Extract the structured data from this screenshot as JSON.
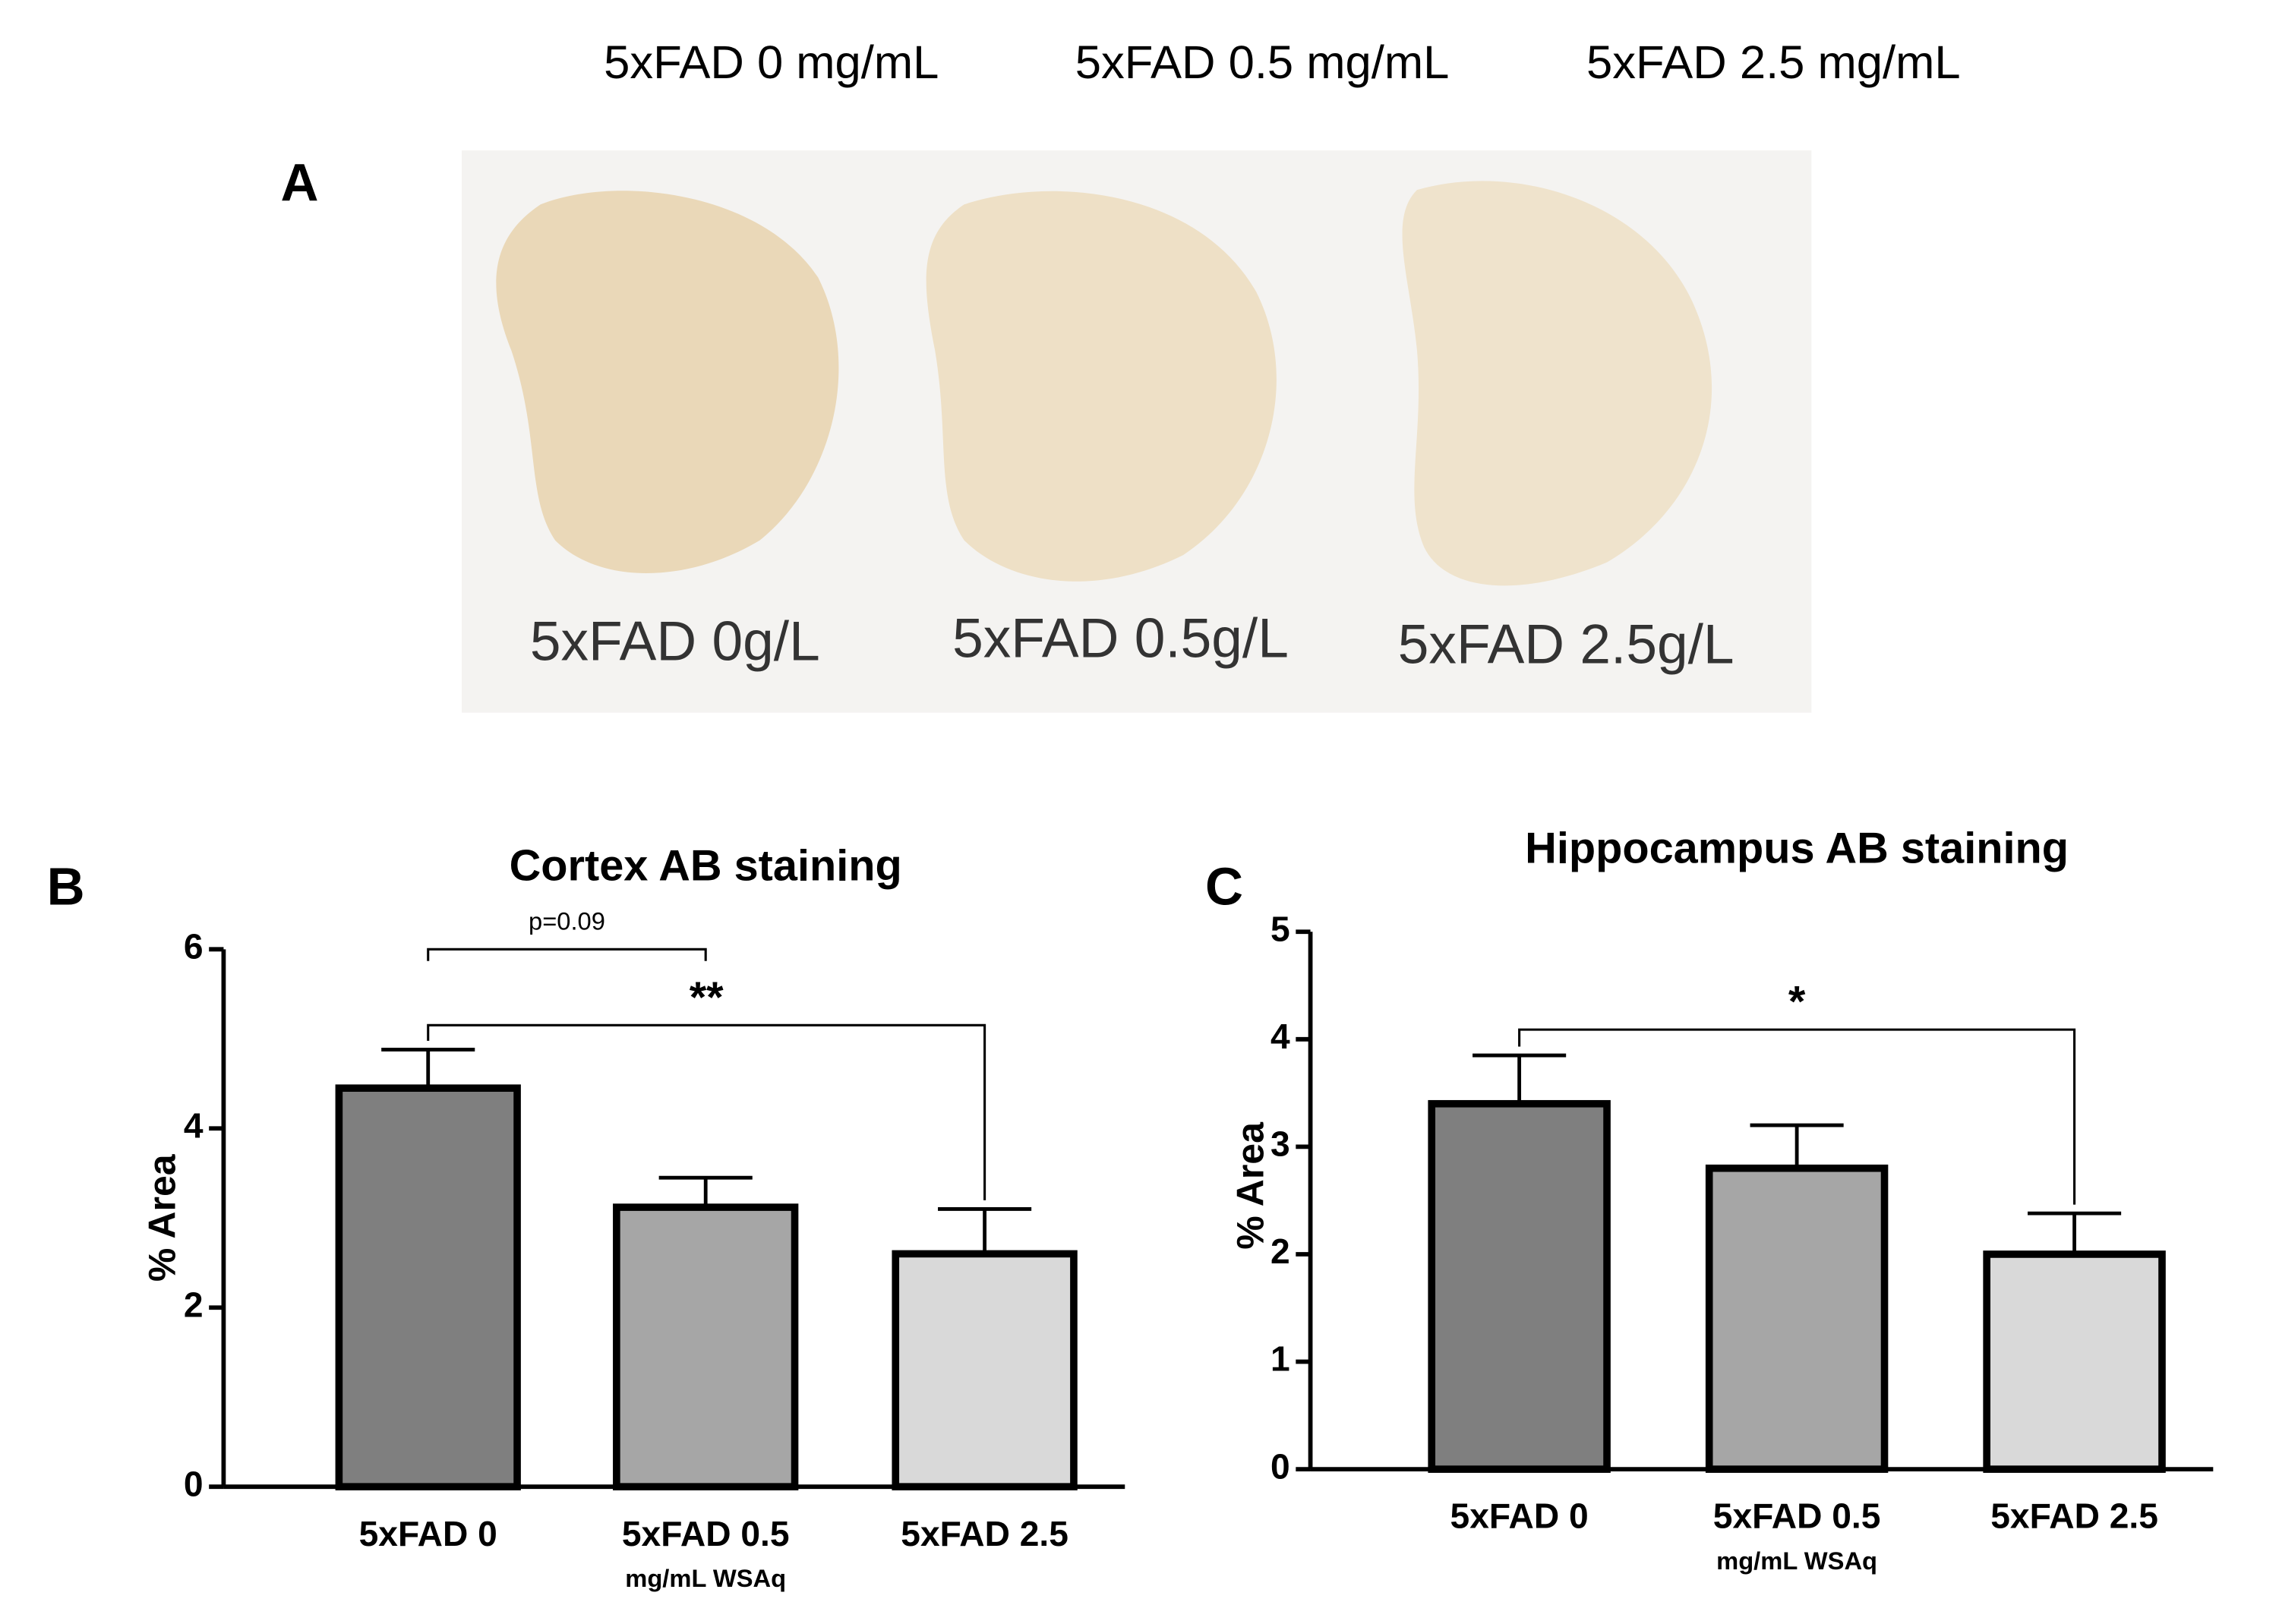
{
  "panel_a": {
    "label": "A",
    "headers": [
      "5xFAD 0 mg/mL",
      "5xFAD 0.5 mg/mL",
      "5xFAD 2.5 mg/mL"
    ],
    "image_labels": [
      "5xFAD 0g/L",
      "5xFAD 0.5g/L",
      "5xFAD 2.5g/L"
    ]
  },
  "chart_data": [
    {
      "type": "bar",
      "panel_label": "B",
      "title": "Cortex AB staining",
      "ylabel": "% Area",
      "xlabel": "mg/mL WSAq",
      "categories": [
        "5xFAD 0",
        "5xFAD 0.5",
        "5xFAD 2.5"
      ],
      "values": [
        4.45,
        3.12,
        2.6
      ],
      "errors": [
        0.43,
        0.33,
        0.5
      ],
      "colors": [
        "#7f7f7f",
        "#a6a6a6",
        "#d9d9d9"
      ],
      "ylim": [
        0,
        6
      ],
      "yticks": [
        0,
        2,
        4,
        6
      ],
      "annotations": [
        "p=0.09",
        "**"
      ]
    },
    {
      "type": "bar",
      "panel_label": "C",
      "title": "Hippocampus AB staining",
      "ylabel": "% Area",
      "xlabel": "mg/mL WSAq",
      "categories": [
        "5xFAD 0",
        "5xFAD 0.5",
        "5xFAD 2.5"
      ],
      "values": [
        3.4,
        2.8,
        2.0
      ],
      "errors": [
        0.45,
        0.4,
        0.38
      ],
      "colors": [
        "#7f7f7f",
        "#a6a6a6",
        "#d9d9d9"
      ],
      "ylim": [
        0,
        5
      ],
      "yticks": [
        0,
        1,
        2,
        3,
        4,
        5
      ],
      "annotations": [
        "*"
      ]
    }
  ]
}
